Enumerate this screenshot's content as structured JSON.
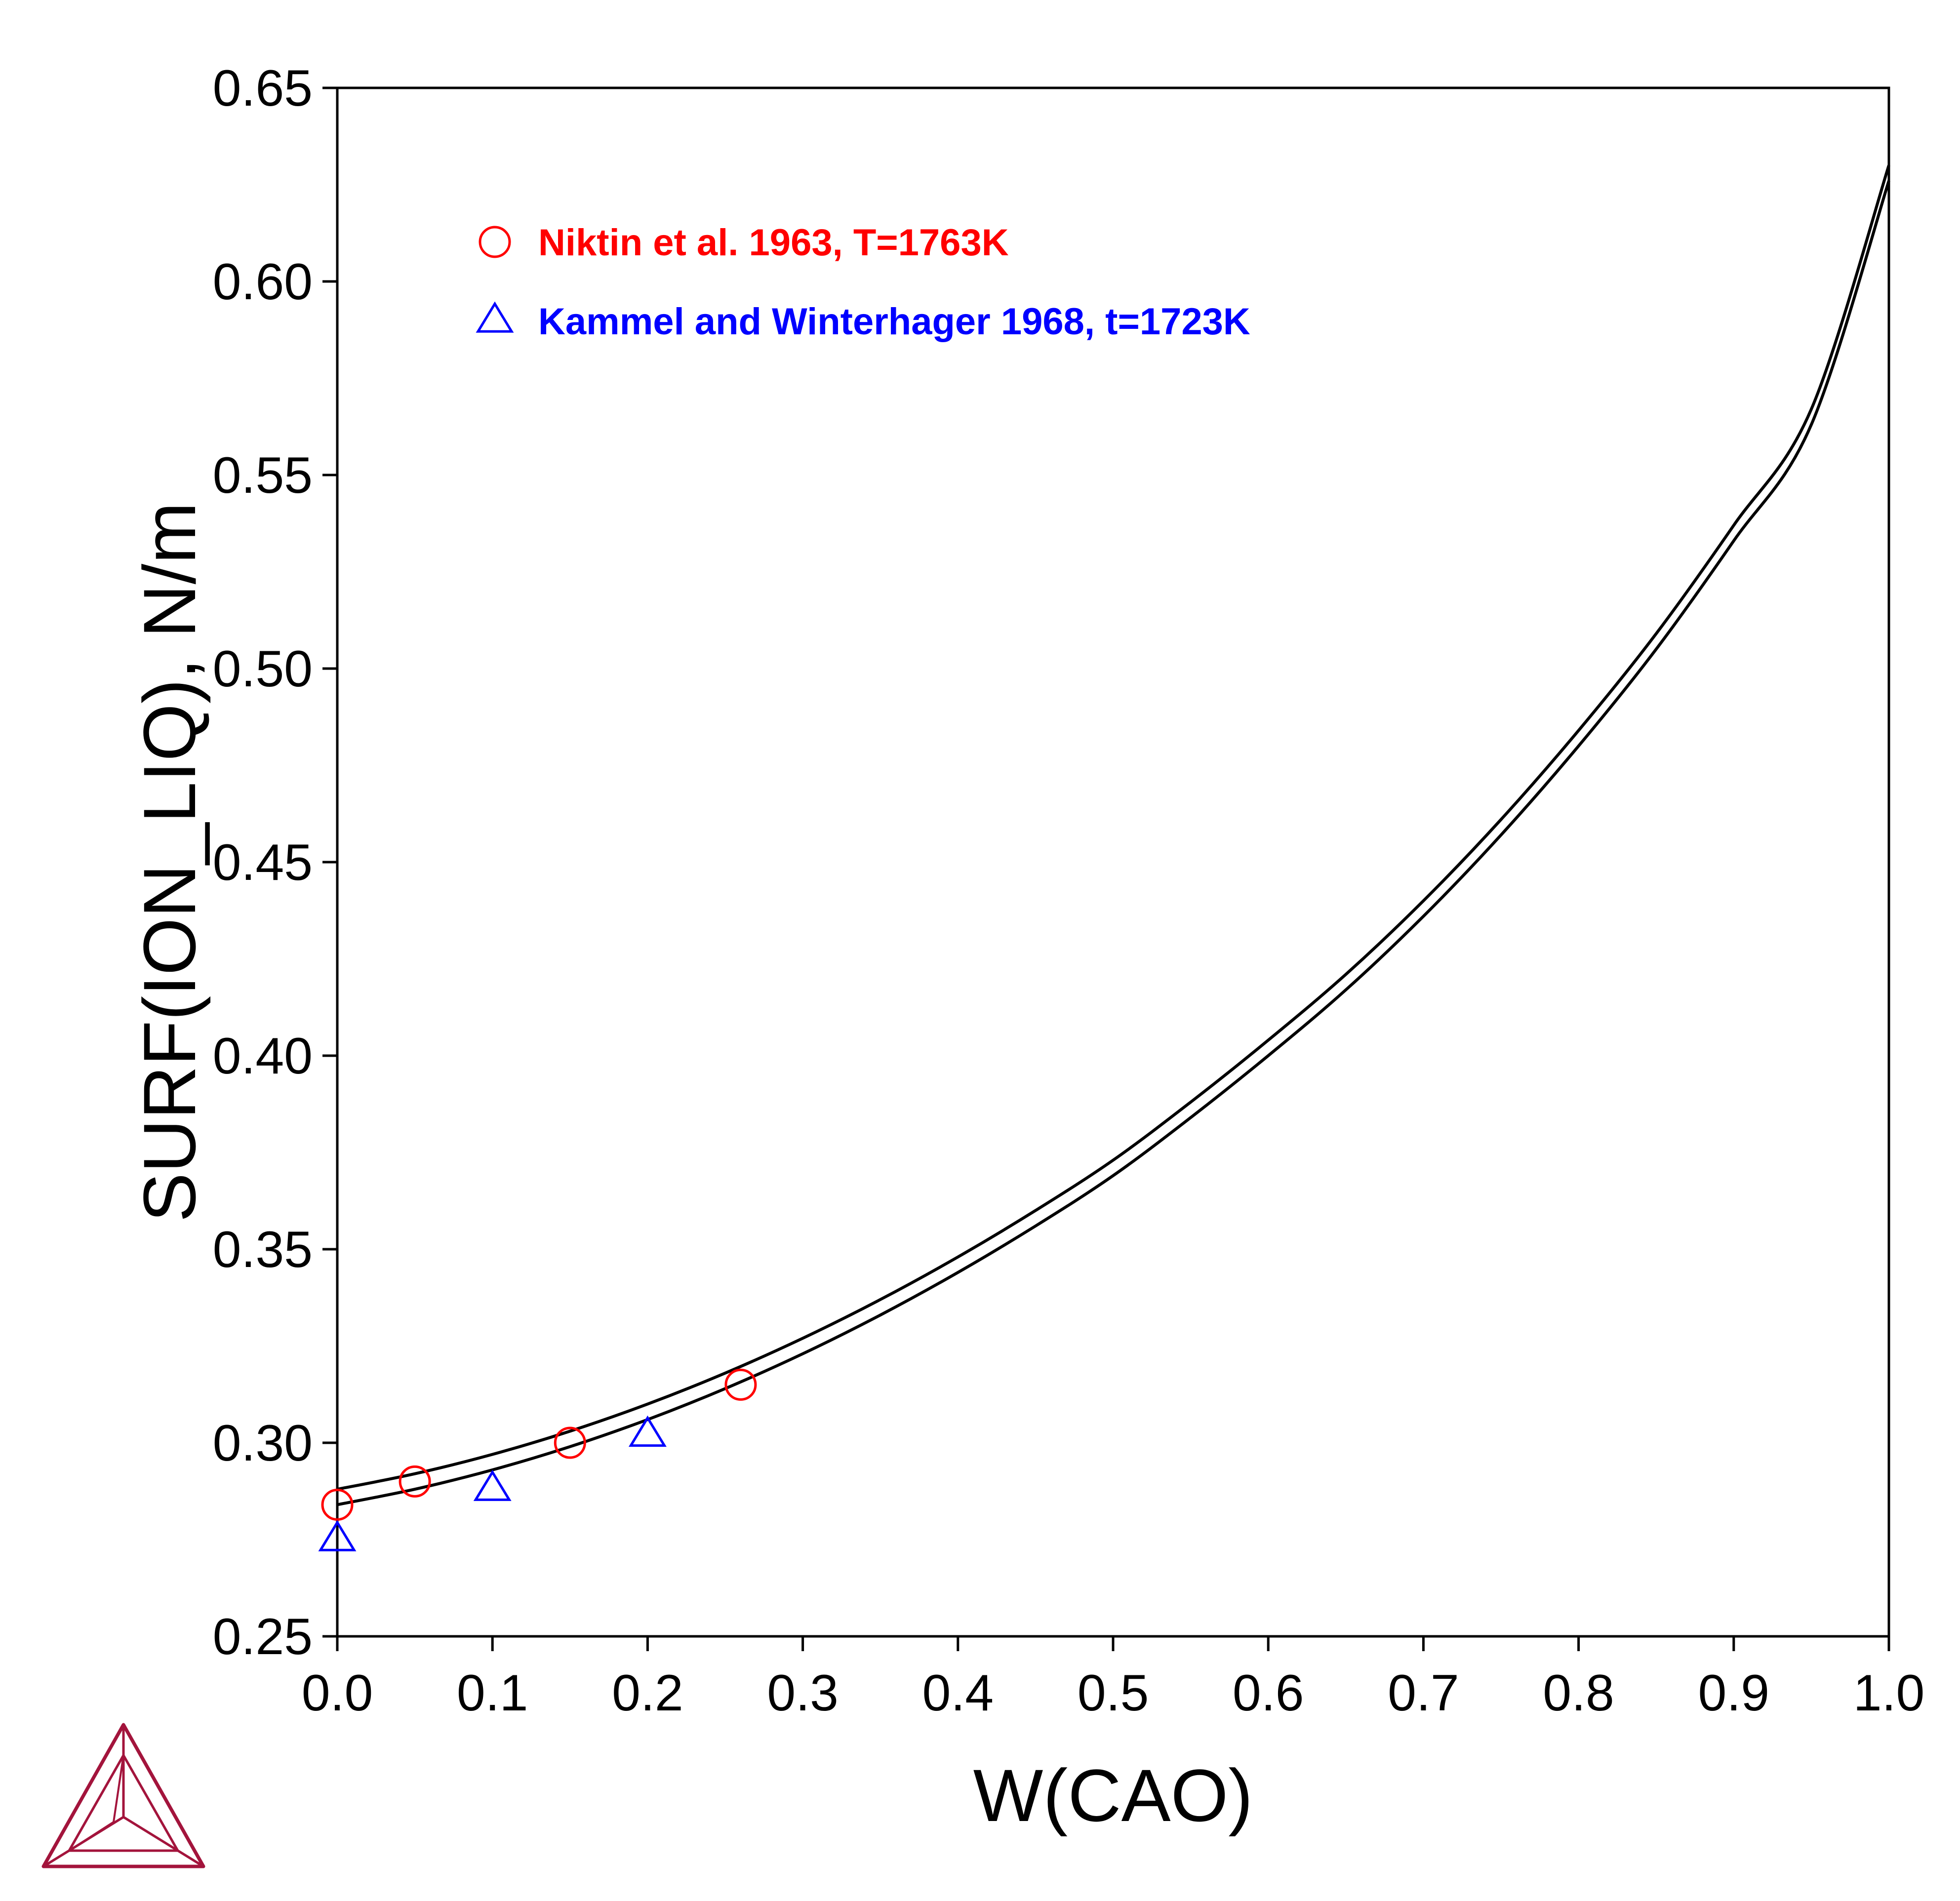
{
  "chart_data": {
    "type": "line",
    "xlabel": "W(CAO)",
    "ylabel": "SURF(ION_LIQ), N/m",
    "xlim": [
      0.0,
      1.0
    ],
    "ylim": [
      0.25,
      0.65
    ],
    "x_ticks": [
      "0.0",
      "0.1",
      "0.2",
      "0.3",
      "0.4",
      "0.5",
      "0.6",
      "0.7",
      "0.8",
      "0.9",
      "1.0"
    ],
    "y_ticks": [
      "0.25",
      "0.30",
      "0.35",
      "0.40",
      "0.45",
      "0.50",
      "0.55",
      "0.60",
      "0.65"
    ],
    "grid": false,
    "legend_position": "top-left",
    "lines": [
      {
        "color": "#000000",
        "x": [
          0.0,
          0.05,
          0.1,
          0.15,
          0.2,
          0.25,
          0.3,
          0.35,
          0.4,
          0.45,
          0.5,
          0.55,
          0.6,
          0.65,
          0.7,
          0.75,
          0.8,
          0.85,
          0.9,
          0.95,
          1.0
        ],
        "y": [
          0.288,
          0.292,
          0.297,
          0.303,
          0.31,
          0.318,
          0.327,
          0.337,
          0.348,
          0.36,
          0.373,
          0.388,
          0.404,
          0.421,
          0.44,
          0.461,
          0.484,
          0.509,
          0.537,
          0.567,
          0.63
        ]
      },
      {
        "color": "#000000",
        "x": [
          0.0,
          0.05,
          0.1,
          0.15,
          0.2,
          0.25,
          0.3,
          0.35,
          0.4,
          0.45,
          0.5,
          0.55,
          0.6,
          0.65,
          0.7,
          0.75,
          0.8,
          0.85,
          0.9,
          0.95,
          1.0
        ],
        "y": [
          0.284,
          0.288,
          0.293,
          0.299,
          0.306,
          0.314,
          0.323,
          0.333,
          0.344,
          0.356,
          0.369,
          0.384,
          0.4,
          0.417,
          0.436,
          0.457,
          0.48,
          0.505,
          0.533,
          0.563,
          0.626
        ]
      }
    ],
    "series": [
      {
        "name": "Niktin et al. 1963, T=1763K",
        "marker": "circle",
        "color": "#ff0000",
        "x": [
          0.0,
          0.05,
          0.15,
          0.26
        ],
        "y": [
          0.284,
          0.29,
          0.3,
          0.315
        ]
      },
      {
        "name": "Kammel and Winterhager 1968, t=1723K",
        "marker": "triangle",
        "color": "#0000ff",
        "x": [
          0.0,
          0.1,
          0.2
        ],
        "y": [
          0.275,
          0.288,
          0.302
        ]
      }
    ]
  },
  "logo": {
    "icon": "thermo-calc-triangle-logo",
    "color": "#a3143c"
  }
}
